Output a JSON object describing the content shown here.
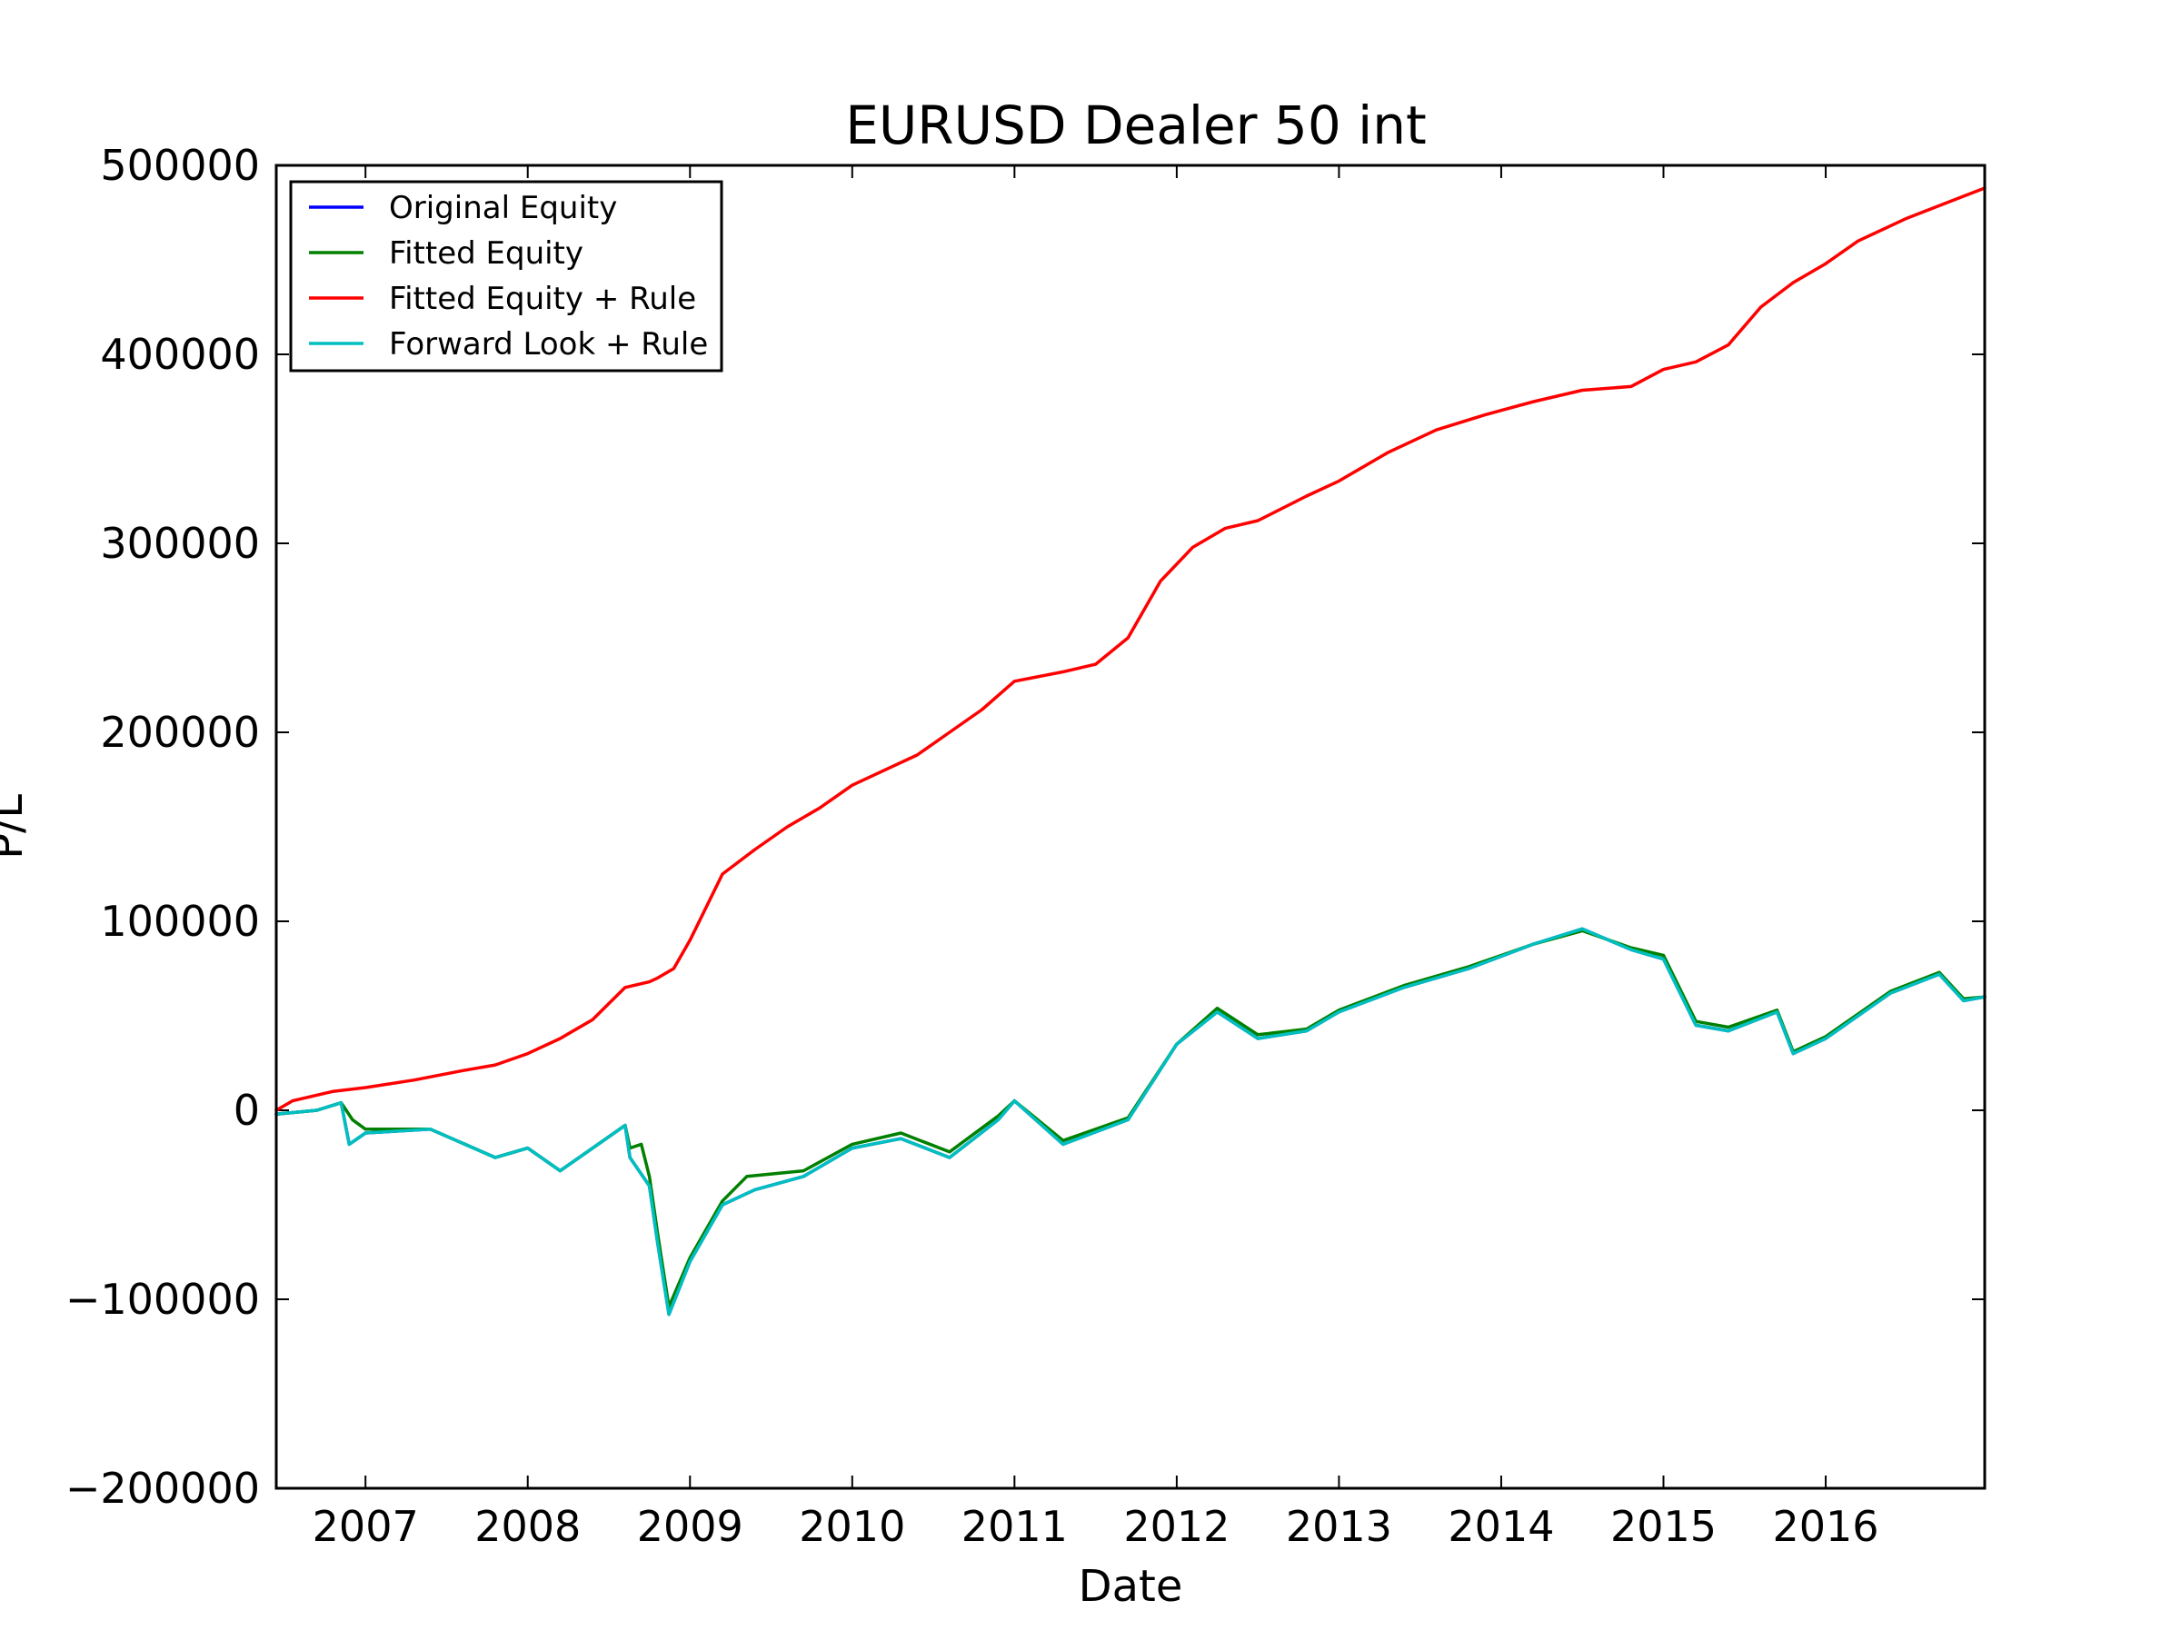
{
  "chart_data": {
    "type": "line",
    "title": "EURUSD Dealer 50 int",
    "xlabel": "Date",
    "ylabel": "P/L",
    "xlim": [
      2006.45,
      2016.98
    ],
    "ylim": [
      -200000,
      500000
    ],
    "x_ticks": [
      {
        "value": 2007,
        "label": "2007"
      },
      {
        "value": 2008,
        "label": "2008"
      },
      {
        "value": 2009,
        "label": "2009"
      },
      {
        "value": 2010,
        "label": "2010"
      },
      {
        "value": 2011,
        "label": "2011"
      },
      {
        "value": 2012,
        "label": "2012"
      },
      {
        "value": 2013,
        "label": "2013"
      },
      {
        "value": 2014,
        "label": "2014"
      },
      {
        "value": 2015,
        "label": "2015"
      },
      {
        "value": 2016,
        "label": "2016"
      }
    ],
    "y_ticks": [
      {
        "value": 500000,
        "label": "500000"
      },
      {
        "value": 400000,
        "label": "400000"
      },
      {
        "value": 300000,
        "label": "300000"
      },
      {
        "value": 200000,
        "label": "200000"
      },
      {
        "value": 100000,
        "label": "100000"
      },
      {
        "value": 0,
        "label": "0"
      },
      {
        "value": -100000,
        "label": "−100000"
      },
      {
        "value": -200000,
        "label": "−200000"
      }
    ],
    "grid": false,
    "legend_position": "top-left",
    "series": [
      {
        "name": "Original Equity",
        "color": "#0000ff",
        "points": [
          [
            2006.45,
            -2000
          ],
          [
            2006.7,
            0
          ],
          [
            2006.85,
            4000
          ],
          [
            2006.9,
            -18000
          ],
          [
            2007.0,
            -12000
          ],
          [
            2007.4,
            -10000
          ],
          [
            2007.8,
            -25000
          ],
          [
            2008.0,
            -20000
          ],
          [
            2008.2,
            -32000
          ],
          [
            2008.6,
            -8000
          ],
          [
            2008.63,
            -25000
          ],
          [
            2008.75,
            -40000
          ],
          [
            2008.8,
            -70000
          ],
          [
            2008.87,
            -108000
          ],
          [
            2009.0,
            -80000
          ],
          [
            2009.2,
            -50000
          ],
          [
            2009.4,
            -42000
          ],
          [
            2009.7,
            -35000
          ],
          [
            2010.0,
            -20000
          ],
          [
            2010.3,
            -15000
          ],
          [
            2010.6,
            -25000
          ],
          [
            2010.9,
            -5000
          ],
          [
            2011.0,
            5000
          ],
          [
            2011.3,
            -18000
          ],
          [
            2011.7,
            -5000
          ],
          [
            2012.0,
            35000
          ],
          [
            2012.25,
            52000
          ],
          [
            2012.5,
            38000
          ],
          [
            2012.8,
            42000
          ],
          [
            2013.0,
            52000
          ],
          [
            2013.4,
            65000
          ],
          [
            2013.8,
            75000
          ],
          [
            2014.2,
            88000
          ],
          [
            2014.5,
            96000
          ],
          [
            2014.8,
            85000
          ],
          [
            2015.0,
            80000
          ],
          [
            2015.2,
            45000
          ],
          [
            2015.4,
            42000
          ],
          [
            2015.7,
            52000
          ],
          [
            2015.8,
            30000
          ],
          [
            2016.0,
            38000
          ],
          [
            2016.4,
            62000
          ],
          [
            2016.7,
            72000
          ],
          [
            2016.85,
            58000
          ],
          [
            2016.98,
            60000
          ]
        ]
      },
      {
        "name": "Fitted Equity",
        "color": "#008000",
        "points": [
          [
            2006.45,
            -2000
          ],
          [
            2006.7,
            0
          ],
          [
            2006.85,
            4000
          ],
          [
            2006.92,
            -5000
          ],
          [
            2007.0,
            -10000
          ],
          [
            2007.4,
            -10000
          ],
          [
            2007.8,
            -25000
          ],
          [
            2008.0,
            -20000
          ],
          [
            2008.2,
            -32000
          ],
          [
            2008.6,
            -8000
          ],
          [
            2008.63,
            -20000
          ],
          [
            2008.7,
            -18000
          ],
          [
            2008.75,
            -35000
          ],
          [
            2008.8,
            -65000
          ],
          [
            2008.87,
            -104000
          ],
          [
            2009.0,
            -78000
          ],
          [
            2009.2,
            -48000
          ],
          [
            2009.35,
            -35000
          ],
          [
            2009.7,
            -32000
          ],
          [
            2010.0,
            -18000
          ],
          [
            2010.3,
            -12000
          ],
          [
            2010.6,
            -22000
          ],
          [
            2010.9,
            -3000
          ],
          [
            2011.0,
            5000
          ],
          [
            2011.3,
            -16000
          ],
          [
            2011.7,
            -4000
          ],
          [
            2012.0,
            35000
          ],
          [
            2012.25,
            54000
          ],
          [
            2012.5,
            40000
          ],
          [
            2012.8,
            43000
          ],
          [
            2013.0,
            53000
          ],
          [
            2013.4,
            66000
          ],
          [
            2013.8,
            76000
          ],
          [
            2014.2,
            88000
          ],
          [
            2014.5,
            95000
          ],
          [
            2014.8,
            86000
          ],
          [
            2015.0,
            82000
          ],
          [
            2015.2,
            47000
          ],
          [
            2015.4,
            44000
          ],
          [
            2015.7,
            53000
          ],
          [
            2015.8,
            31000
          ],
          [
            2016.0,
            39000
          ],
          [
            2016.4,
            63000
          ],
          [
            2016.7,
            73000
          ],
          [
            2016.85,
            59000
          ],
          [
            2016.98,
            60000
          ]
        ]
      },
      {
        "name": "Fitted Equity + Rule",
        "color": "#ff0000",
        "points": [
          [
            2006.45,
            0
          ],
          [
            2006.55,
            5000
          ],
          [
            2006.8,
            10000
          ],
          [
            2007.0,
            12000
          ],
          [
            2007.3,
            16000
          ],
          [
            2007.6,
            21000
          ],
          [
            2007.8,
            24000
          ],
          [
            2008.0,
            30000
          ],
          [
            2008.2,
            38000
          ],
          [
            2008.4,
            48000
          ],
          [
            2008.6,
            65000
          ],
          [
            2008.75,
            68000
          ],
          [
            2008.8,
            70000
          ],
          [
            2008.9,
            75000
          ],
          [
            2009.0,
            90000
          ],
          [
            2009.2,
            125000
          ],
          [
            2009.4,
            138000
          ],
          [
            2009.6,
            150000
          ],
          [
            2009.8,
            160000
          ],
          [
            2010.0,
            172000
          ],
          [
            2010.2,
            180000
          ],
          [
            2010.4,
            188000
          ],
          [
            2010.6,
            200000
          ],
          [
            2010.8,
            212000
          ],
          [
            2011.0,
            227000
          ],
          [
            2011.3,
            232000
          ],
          [
            2011.5,
            236000
          ],
          [
            2011.7,
            250000
          ],
          [
            2011.9,
            280000
          ],
          [
            2012.1,
            298000
          ],
          [
            2012.3,
            308000
          ],
          [
            2012.5,
            312000
          ],
          [
            2012.8,
            325000
          ],
          [
            2013.0,
            333000
          ],
          [
            2013.3,
            348000
          ],
          [
            2013.6,
            360000
          ],
          [
            2013.9,
            368000
          ],
          [
            2014.2,
            375000
          ],
          [
            2014.5,
            381000
          ],
          [
            2014.8,
            383000
          ],
          [
            2015.0,
            392000
          ],
          [
            2015.2,
            396000
          ],
          [
            2015.4,
            405000
          ],
          [
            2015.6,
            425000
          ],
          [
            2015.8,
            438000
          ],
          [
            2016.0,
            448000
          ],
          [
            2016.2,
            460000
          ],
          [
            2016.5,
            472000
          ],
          [
            2016.8,
            482000
          ],
          [
            2016.98,
            488000
          ]
        ]
      },
      {
        "name": "Forward Look + Rule",
        "color": "#00bfbf",
        "points": [
          [
            2006.45,
            -2000
          ],
          [
            2006.7,
            0
          ],
          [
            2006.85,
            4000
          ],
          [
            2006.9,
            -18000
          ],
          [
            2007.0,
            -12000
          ],
          [
            2007.4,
            -10000
          ],
          [
            2007.8,
            -25000
          ],
          [
            2008.0,
            -20000
          ],
          [
            2008.2,
            -32000
          ],
          [
            2008.6,
            -8000
          ],
          [
            2008.63,
            -25000
          ],
          [
            2008.75,
            -40000
          ],
          [
            2008.8,
            -70000
          ],
          [
            2008.87,
            -108000
          ],
          [
            2009.0,
            -80000
          ],
          [
            2009.2,
            -50000
          ],
          [
            2009.4,
            -42000
          ],
          [
            2009.7,
            -35000
          ],
          [
            2010.0,
            -20000
          ],
          [
            2010.3,
            -15000
          ],
          [
            2010.6,
            -25000
          ],
          [
            2010.9,
            -5000
          ],
          [
            2011.0,
            5000
          ],
          [
            2011.3,
            -18000
          ],
          [
            2011.7,
            -5000
          ],
          [
            2012.0,
            35000
          ],
          [
            2012.25,
            52000
          ],
          [
            2012.5,
            38000
          ],
          [
            2012.8,
            42000
          ],
          [
            2013.0,
            52000
          ],
          [
            2013.4,
            65000
          ],
          [
            2013.8,
            75000
          ],
          [
            2014.2,
            88000
          ],
          [
            2014.5,
            96000
          ],
          [
            2014.8,
            85000
          ],
          [
            2015.0,
            80000
          ],
          [
            2015.2,
            45000
          ],
          [
            2015.4,
            42000
          ],
          [
            2015.7,
            52000
          ],
          [
            2015.8,
            30000
          ],
          [
            2016.0,
            38000
          ],
          [
            2016.4,
            62000
          ],
          [
            2016.7,
            72000
          ],
          [
            2016.85,
            58000
          ],
          [
            2016.98,
            60000
          ]
        ]
      }
    ]
  }
}
